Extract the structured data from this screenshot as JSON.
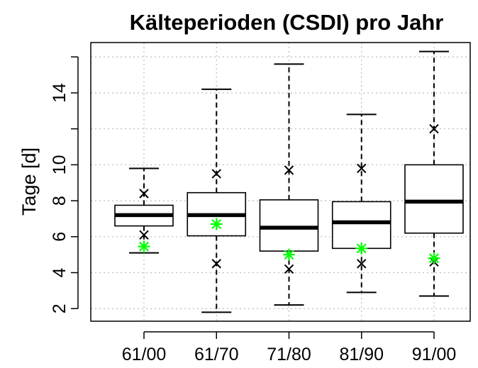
{
  "chart_data": {
    "type": "box",
    "title": "Kälteperioden (CSDI) pro Jahr",
    "xlabel": "",
    "ylabel": "Tage [d]",
    "ylim": [
      1.3,
      16.8
    ],
    "yticks": [
      2,
      4,
      6,
      8,
      10,
      14
    ],
    "grid": true,
    "categories": [
      "61/00",
      "61/70",
      "71/80",
      "81/90",
      "91/00"
    ],
    "boxes": [
      {
        "whisker_low": 5.1,
        "q1": 6.6,
        "median": 7.2,
        "q3": 7.75,
        "whisker_high": 9.8
      },
      {
        "whisker_low": 1.8,
        "q1": 6.05,
        "median": 7.2,
        "q3": 8.45,
        "whisker_high": 14.2
      },
      {
        "whisker_low": 2.2,
        "q1": 5.2,
        "median": 6.5,
        "q3": 8.05,
        "whisker_high": 15.6
      },
      {
        "whisker_low": 2.9,
        "q1": 5.35,
        "median": 6.8,
        "q3": 7.95,
        "whisker_high": 12.8
      },
      {
        "whisker_low": 2.7,
        "q1": 6.2,
        "median": 7.95,
        "q3": 10.0,
        "whisker_high": 16.3
      }
    ],
    "x_markers": [
      [
        6.1,
        8.4
      ],
      [
        4.5,
        9.5
      ],
      [
        4.2,
        9.7
      ],
      [
        4.5,
        9.8
      ],
      [
        4.6,
        12.0
      ]
    ],
    "green_markers": [
      5.45,
      6.7,
      5.0,
      5.35,
      4.8
    ],
    "colors": {
      "box": "#000000",
      "x_marker": "#000000",
      "green_marker": "#00ff00",
      "grid": "#bbbbbb"
    }
  }
}
